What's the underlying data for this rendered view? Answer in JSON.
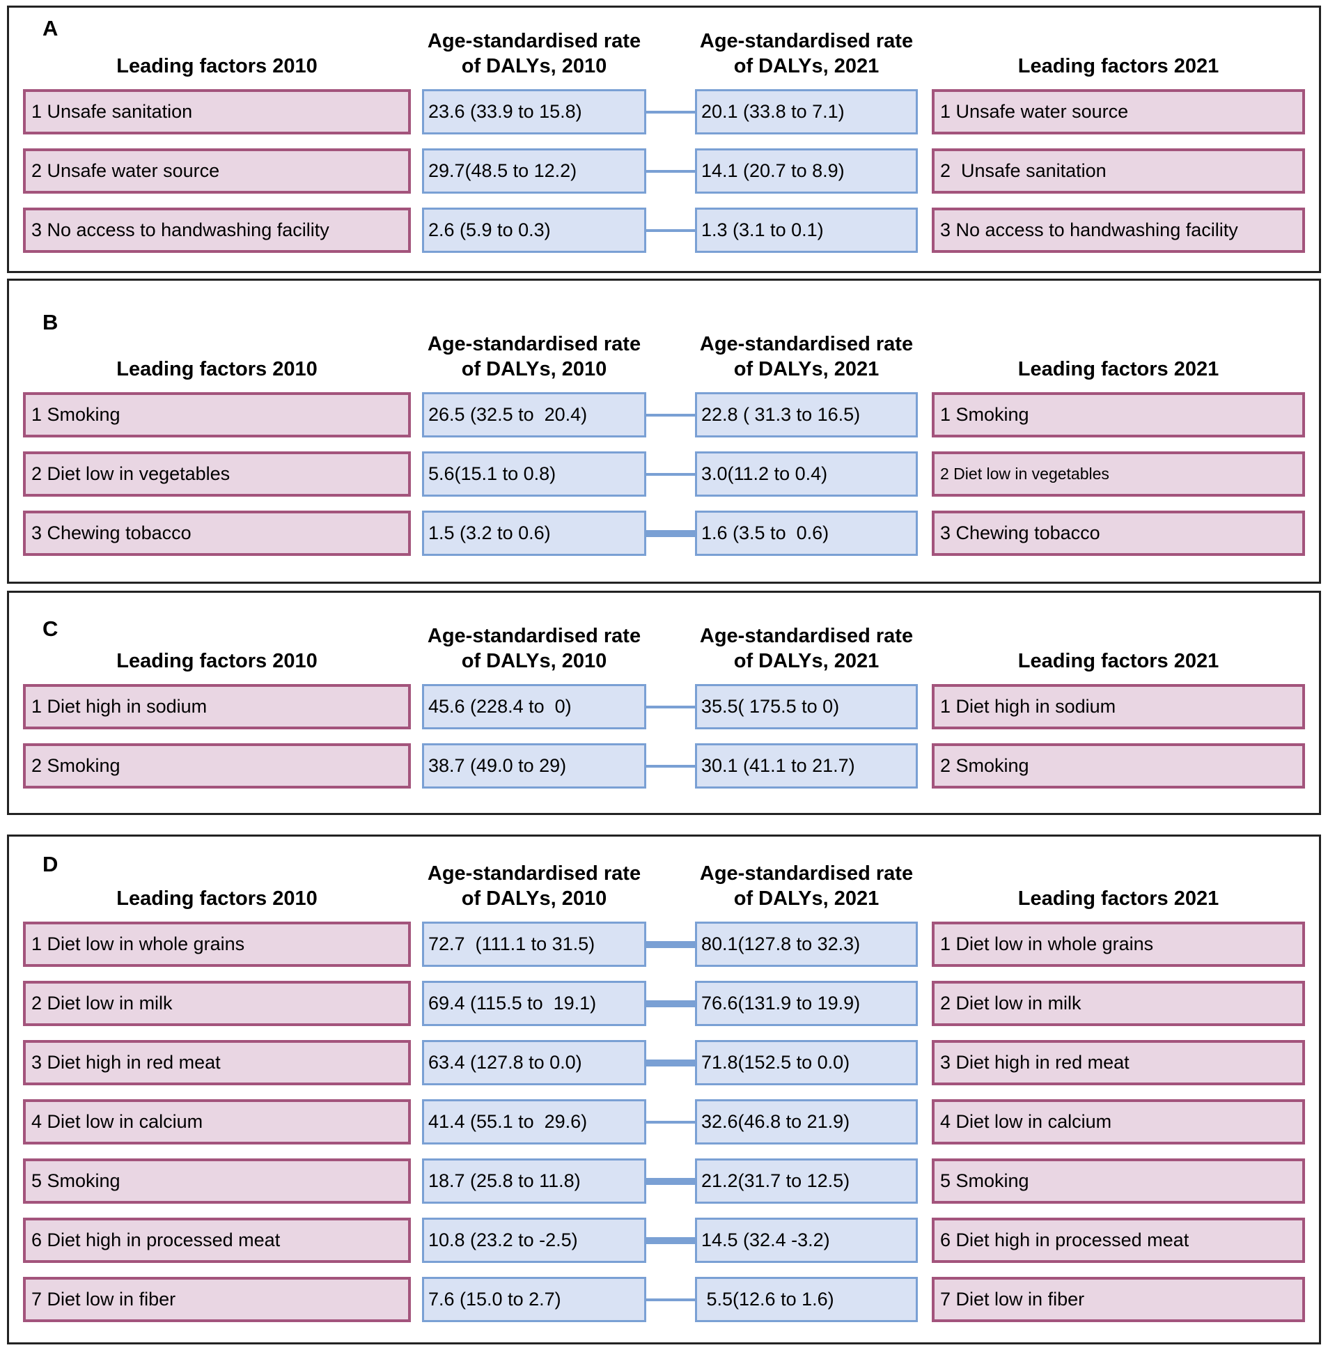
{
  "colors": {
    "factor_box_fill": "#e9d6e3",
    "factor_box_border": "#a3547c",
    "rate_box_fill": "#d9e2f4",
    "rate_box_border": "#7aa0d4",
    "connector_color": "#7aa0d4",
    "panel_border": "#232323"
  },
  "panels": [
    {
      "id": "A",
      "label": "A",
      "headers": {
        "left": "Leading factors 2010",
        "rate2010_line1": "Age-standardised rate",
        "rate2010_line2": "of DALYs, 2010",
        "rate2021_line1": "Age-standardised rate",
        "rate2021_line2": "of DALYs, 2021",
        "right": "Leading factors 2021"
      },
      "rows": [
        {
          "factor2010": "1 Unsafe sanitation",
          "rate2010": "23.6 (33.9 to 15.8)",
          "rate2021": "20.1 (33.8 to 7.1)",
          "factor2021": "1 Unsafe water source",
          "link_weight": "thin"
        },
        {
          "factor2010": "2 Unsafe water source",
          "rate2010": "29.7(48.5 to 12.2)",
          "rate2021": "14.1 (20.7 to 8.9)",
          "factor2021": "2  Unsafe sanitation",
          "link_weight": "thin"
        },
        {
          "factor2010": "3 No access to handwashing facility",
          "rate2010": "2.6 (5.9 to 0.3)",
          "rate2021": "1.3 (3.1 to 0.1)",
          "factor2021": "3 No access to handwashing facility",
          "link_weight": "thin"
        }
      ]
    },
    {
      "id": "B",
      "label": "B",
      "headers": {
        "left": "Leading factors 2010",
        "rate2010_line1": "Age-standardised rate",
        "rate2010_line2": "of DALYs, 2010",
        "rate2021_line1": "Age-standardised rate",
        "rate2021_line2": "of DALYs, 2021",
        "right": "Leading factors 2021"
      },
      "rows": [
        {
          "factor2010": "1 Smoking",
          "rate2010": "26.5 (32.5 to  20.4)",
          "rate2021": "22.8 ( 31.3 to 16.5)",
          "factor2021": "1 Smoking",
          "link_weight": "thin"
        },
        {
          "factor2010": "2 Diet low in vegetables",
          "rate2010": "5.6(15.1 to 0.8)",
          "rate2021": "3.0(11.2 to 0.4)",
          "factor2021": "2 Diet low in vegetables",
          "factor2021_small": true,
          "link_weight": "thin"
        },
        {
          "factor2010": "3 Chewing tobacco",
          "rate2010": "1.5 (3.2 to 0.6)",
          "rate2021": "1.6 (3.5 to  0.6)",
          "factor2021": "3 Chewing tobacco",
          "link_weight": "thick"
        }
      ]
    },
    {
      "id": "C",
      "label": "C",
      "headers": {
        "left": "Leading factors 2010",
        "rate2010_line1": "Age-standardised rate",
        "rate2010_line2": "of DALYs, 2010",
        "rate2021_line1": "Age-standardised rate",
        "rate2021_line2": "of DALYs, 2021",
        "right": "Leading factors 2021"
      },
      "rows": [
        {
          "factor2010": "1 Diet high in sodium",
          "rate2010": "45.6 (228.4 to  0)",
          "rate2021": "35.5( 175.5 to 0)",
          "factor2021": "1 Diet high in sodium",
          "link_weight": "thin"
        },
        {
          "factor2010": "2 Smoking",
          "rate2010": "38.7 (49.0 to 29)",
          "rate2021": "30.1 (41.1 to 21.7)",
          "factor2021": "2 Smoking",
          "link_weight": "thin"
        }
      ]
    },
    {
      "id": "D",
      "label": "D",
      "headers": {
        "left": "Leading factors 2010",
        "rate2010_line1": "Age-standardised rate",
        "rate2010_line2": "of DALYs, 2010",
        "rate2021_line1": "Age-standardised rate",
        "rate2021_line2": "of DALYs, 2021",
        "right": "Leading factors 2021"
      },
      "rows": [
        {
          "factor2010": "1 Diet low in whole grains",
          "rate2010": "72.7  (111.1 to 31.5)",
          "rate2021": "80.1(127.8 to 32.3)",
          "factor2021": "1 Diet low in whole grains",
          "link_weight": "thick"
        },
        {
          "factor2010": "2 Diet low in milk",
          "rate2010": "69.4 (115.5 to  19.1)",
          "rate2021": "76.6(131.9 to 19.9)",
          "factor2021": "2 Diet low in milk",
          "link_weight": "thick"
        },
        {
          "factor2010": "3 Diet high in red meat",
          "rate2010": "63.4 (127.8 to 0.0)",
          "rate2021": "71.8(152.5 to 0.0)",
          "factor2021": "3 Diet high in red meat",
          "link_weight": "thick"
        },
        {
          "factor2010": "4 Diet low in calcium",
          "rate2010": "41.4 (55.1 to  29.6)",
          "rate2021": "32.6(46.8 to 21.9)",
          "factor2021": "4 Diet low in calcium",
          "link_weight": "thin"
        },
        {
          "factor2010": "5 Smoking",
          "rate2010": "18.7 (25.8 to 11.8)",
          "rate2021": "21.2(31.7 to 12.5)",
          "factor2021": "5 Smoking",
          "link_weight": "thick"
        },
        {
          "factor2010": "6 Diet high in processed meat",
          "rate2010": "10.8 (23.2 to -2.5)",
          "rate2021": "14.5 (32.4 -3.2)",
          "factor2021": "6 Diet high in processed meat",
          "link_weight": "thick"
        },
        {
          "factor2010": "7 Diet low in fiber",
          "rate2010": "7.6 (15.0 to 2.7)",
          "rate2021": " 5.5(12.6 to 1.6)",
          "factor2021": "7 Diet low in fiber",
          "link_weight": "thin"
        }
      ]
    }
  ]
}
